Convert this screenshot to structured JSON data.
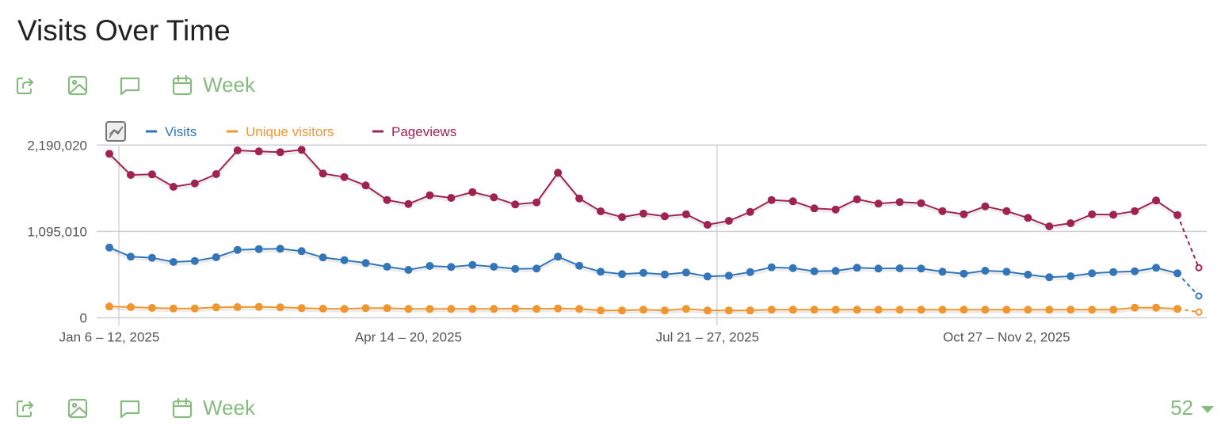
{
  "title": "Visits Over Time",
  "toolbar_top": {
    "period_label": "Week",
    "icons": [
      "export-icon",
      "image-icon",
      "annotation-icon",
      "calendar-icon"
    ]
  },
  "toolbar_bottom": {
    "period_label": "Week",
    "limit_value": "52"
  },
  "colors": {
    "visits": "#3275b8",
    "unique": "#f0962f",
    "pageviews": "#9e2350",
    "accent": "#86bb7f"
  },
  "chart_data": {
    "type": "line",
    "title": "Visits Over Time",
    "ylim": [
      0,
      2190020
    ],
    "yticks": [
      "0",
      "1,095,010",
      "2,190,020"
    ],
    "ytick_values": [
      0,
      1095010,
      2190020
    ],
    "xtick_labels": [
      {
        "index": 0,
        "label": "Jan 6 – 12, 2025"
      },
      {
        "index": 14,
        "label": "Apr 14 – 20, 2025"
      },
      {
        "index": 28,
        "label": "Jul 21 – 27, 2025"
      },
      {
        "index": 42,
        "label": "Oct 27 – Nov 2, 2025"
      }
    ],
    "legend_position": "top-left",
    "last_point_incomplete": true,
    "series": [
      {
        "name": "Visits",
        "key": "visits",
        "values": [
          891300,
          774900,
          760800,
          707600,
          720700,
          767800,
          861200,
          871200,
          875200,
          845100,
          764800,
          730700,
          694600,
          647400,
          607200,
          657400,
          644400,
          670500,
          647400,
          620300,
          624300,
          774900,
          660400,
          584200,
          554000,
          570100,
          550000,
          574100,
          523900,
          534000,
          580100,
          640400,
          630300,
          590200,
          594200,
          634300,
          624300,
          627300,
          624300,
          584200,
          560100,
          597200,
          584200,
          547000,
          513900,
          526900,
          564100,
          580100,
          590200,
          634300,
          564100,
          276000
        ]
      },
      {
        "name": "Unique visitors",
        "key": "unique",
        "values": [
          142500,
          135500,
          125500,
          118400,
          118400,
          132500,
          135500,
          138500,
          132500,
          122500,
          115400,
          112400,
          122500,
          122500,
          112400,
          112400,
          112400,
          112400,
          112400,
          118400,
          112400,
          118400,
          112400,
          93300,
          93300,
          102400,
          93300,
          112400,
          93300,
          93300,
          93300,
          102400,
          102400,
          102400,
          102400,
          102400,
          102400,
          102400,
          102400,
          102400,
          102400,
          102400,
          102400,
          102400,
          102400,
          102400,
          102400,
          102400,
          128500,
          128500,
          112400,
          72300
        ]
      },
      {
        "name": "Pageviews",
        "key": "pageviews",
        "values": [
          2079700,
          1811700,
          1818700,
          1661100,
          1704300,
          1821700,
          2122800,
          2109800,
          2099700,
          2129900,
          1828700,
          1784600,
          1678200,
          1493500,
          1443300,
          1553700,
          1520600,
          1593900,
          1527600,
          1437300,
          1463400,
          1838800,
          1513600,
          1350000,
          1276700,
          1322900,
          1286700,
          1312800,
          1179300,
          1229500,
          1343000,
          1493500,
          1477400,
          1387100,
          1373100,
          1503500,
          1447300,
          1467400,
          1453400,
          1353000,
          1312800,
          1413200,
          1353000,
          1266700,
          1159300,
          1199400,
          1312800,
          1306800,
          1353000,
          1487500,
          1302800,
          634300
        ]
      }
    ]
  }
}
